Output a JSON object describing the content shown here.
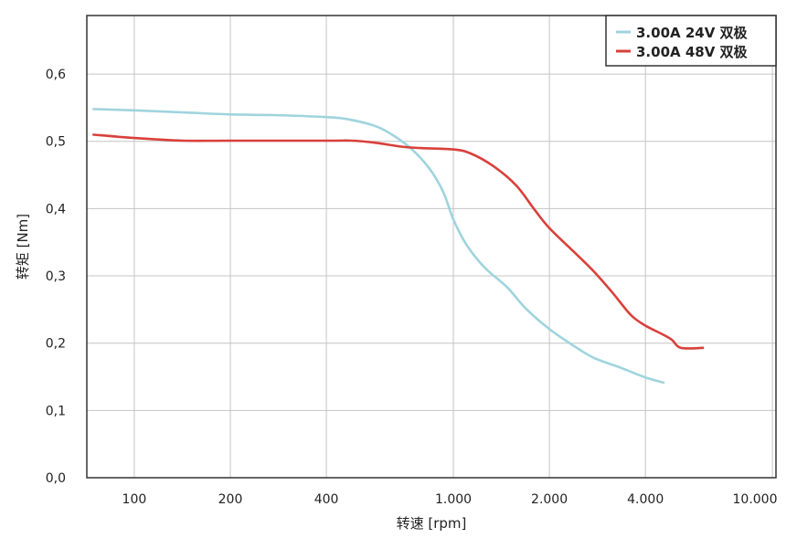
{
  "chart_data": {
    "type": "line",
    "title": "",
    "xlabel": "转速 [rpm]",
    "ylabel": "转矩 [Nm]",
    "xscale": "log",
    "xlim": [
      71,
      10260
    ],
    "ylim": [
      0,
      0.687
    ],
    "grid": true,
    "legend_position": "top-right",
    "xticks": [
      {
        "value": 100,
        "label": "100"
      },
      {
        "value": 200,
        "label": "200"
      },
      {
        "value": 400,
        "label": "400"
      },
      {
        "value": 1000,
        "label": "1.000"
      },
      {
        "value": 2000,
        "label": "2.000"
      },
      {
        "value": 4000,
        "label": "4.000"
      },
      {
        "value": 10000,
        "label": "10.000"
      }
    ],
    "yticks": [
      {
        "value": 0,
        "label": "0,0"
      },
      {
        "value": 0.1,
        "label": "0,1"
      },
      {
        "value": 0.2,
        "label": "0,2"
      },
      {
        "value": 0.3,
        "label": "0,3"
      },
      {
        "value": 0.4,
        "label": "0,4"
      },
      {
        "value": 0.5,
        "label": "0,5"
      },
      {
        "value": 0.6,
        "label": "0,6"
      }
    ],
    "series": [
      {
        "name": "3.00A 24V 双极",
        "color": "#9fd4dd",
        "x": [
          74,
          100,
          142,
          200,
          274,
          400,
          465,
          567,
          647,
          738,
          843,
          929,
          1000,
          1097,
          1250,
          1475,
          1683,
          2000,
          2420,
          2763,
          3366,
          4000,
          4590
        ],
        "y": [
          0.548,
          0.546,
          0.543,
          0.54,
          0.539,
          0.536,
          0.533,
          0.523,
          0.509,
          0.489,
          0.459,
          0.425,
          0.384,
          0.347,
          0.313,
          0.283,
          0.252,
          0.221,
          0.194,
          0.178,
          0.163,
          0.149,
          0.141
        ]
      },
      {
        "name": "3.00A 48V 双极",
        "color": "#d9403a",
        "x": [
          74,
          100,
          142,
          200,
          400,
          481,
          567,
          691,
          788,
          1000,
          1133,
          1336,
          1577,
          1799,
          2000,
          2420,
          2763,
          3154,
          3597,
          4000,
          4530,
          4840,
          5170,
          6100
        ],
        "y": [
          0.51,
          0.505,
          0.501,
          0.501,
          0.501,
          0.501,
          0.498,
          0.492,
          0.49,
          0.488,
          0.482,
          0.463,
          0.434,
          0.398,
          0.371,
          0.333,
          0.306,
          0.275,
          0.242,
          0.226,
          0.213,
          0.205,
          0.193,
          0.193
        ]
      }
    ]
  }
}
